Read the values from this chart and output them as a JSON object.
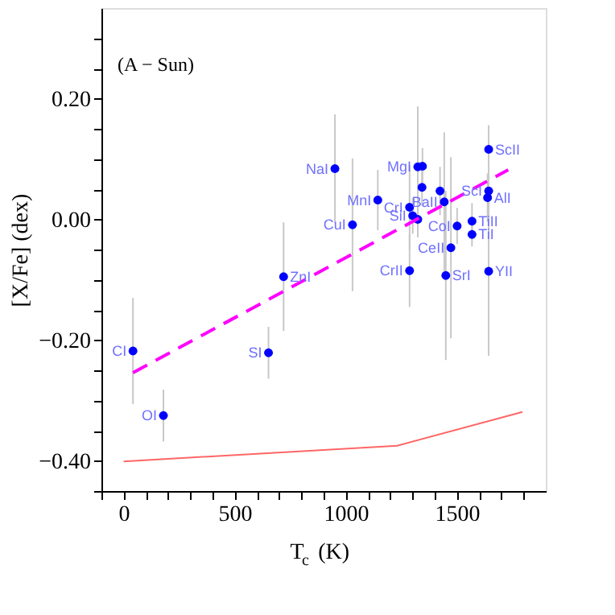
{
  "chart_data": {
    "type": "scatter",
    "xlabel": "T$_{c}$ (K)",
    "ylabel": "[X/Fe] (dex)",
    "xlim": [
      -100,
      1900
    ],
    "ylim": [
      -0.45,
      0.35
    ],
    "xticks": [
      {
        "value": -100,
        "label": null
      },
      0,
      {
        "value": 100,
        "label": null
      },
      {
        "value": 200,
        "label": null
      },
      {
        "value": 300,
        "label": null
      },
      {
        "value": 400,
        "label": null
      },
      500,
      {
        "value": 600,
        "label": null
      },
      {
        "value": 700,
        "label": null
      },
      {
        "value": 800,
        "label": null
      },
      {
        "value": 900,
        "label": null
      },
      1000,
      {
        "value": 1100,
        "label": null
      },
      {
        "value": 1200,
        "label": null
      },
      {
        "value": 1300,
        "label": null
      },
      {
        "value": 1400,
        "label": null
      },
      1500,
      {
        "value": 1600,
        "label": null
      },
      {
        "value": 1700,
        "label": null
      },
      {
        "value": 1800,
        "label": null
      }
    ],
    "yticks": [
      {
        "value": -0.45,
        "label": null
      },
      {
        "value": -0.4,
        "label": "−0.40"
      },
      {
        "value": -0.35,
        "label": null
      },
      {
        "value": -0.3,
        "label": null
      },
      {
        "value": -0.25,
        "label": null
      },
      {
        "value": -0.2,
        "label": "−0.20"
      },
      {
        "value": -0.15,
        "label": null
      },
      {
        "value": -0.1,
        "label": null
      },
      {
        "value": -0.05,
        "label": null
      },
      {
        "value": 0,
        "label": "0.00"
      },
      {
        "value": 0.05,
        "label": null
      },
      {
        "value": 0.1,
        "label": null
      },
      {
        "value": 0.15,
        "label": null
      },
      {
        "value": 0.2,
        "label": "0.20"
      },
      {
        "value": 0.25,
        "label": null
      },
      {
        "value": 0.3,
        "label": null
      }
    ],
    "grid": false,
    "marker": "circle",
    "series": [
      {
        "color": "#0000ff",
        "x": [
          42,
          179,
          652,
          720,
          951,
          1030,
          1144,
          1287,
          1301,
          1324,
          1324,
          1345,
          1343,
          1424,
          1443,
          1287,
          1450,
          1473,
          1501,
          1568,
          1568,
          1638,
          1643,
          1643,
          1643
        ],
        "values": [
          -0.218,
          -0.325,
          -0.221,
          -0.095,
          0.084,
          -0.009,
          0.032,
          0.02,
          0.006,
          0.0,
          0.087,
          0.088,
          0.053,
          0.047,
          0.029,
          -0.085,
          -0.093,
          -0.047,
          -0.011,
          -0.003,
          -0.025,
          0.036,
          0.047,
          0.116,
          -0.086
        ],
        "errors": [
          0.088,
          0.043,
          0.043,
          0.09,
          0.09,
          0.11,
          0.05,
          0.07,
          0.03,
          0.03,
          0.1,
          0.03,
          0.03,
          0.04,
          0.115,
          0.06,
          0.14,
          0.15,
          0.03,
          0.03,
          0.02,
          0.04,
          0.03,
          0.04,
          0.14
        ]
      },
      {
        "type": "line",
        "color": "#ff00ff",
        "line_style": "dashed",
        "marker": "none",
        "x": [
          42,
          1731
        ],
        "values": [
          -0.254,
          0.082
        ]
      },
      {
        "type": "line",
        "color": "#ff6666",
        "line_style": "solid",
        "marker": "none",
        "x": [
          0,
          1231,
          1795
        ],
        "values": [
          -0.401,
          -0.375,
          -0.319
        ]
      }
    ],
    "annotations": [
      "(A − Sun)",
      {
        "text": "CI",
        "x": 42,
        "y": -0.218
      },
      {
        "text": "OI",
        "x": 179,
        "y": -0.325
      },
      {
        "text": "SI",
        "x": 652,
        "y": -0.221
      },
      {
        "text": "ZnI",
        "x": 720,
        "y": -0.095
      },
      {
        "text": "NaI",
        "x": 951,
        "y": 0.084
      },
      {
        "text": "CuI",
        "x": 1030,
        "y": -0.009
      },
      {
        "text": "MnI",
        "x": 1144,
        "y": 0.032
      },
      {
        "text": "CrI",
        "x": 1287,
        "y": 0.02
      },
      {
        "text": "SiI",
        "x": 1301,
        "y": 0.006
      },
      {
        "text": "MgI",
        "x": 1324,
        "y": 0.087
      },
      {
        "text": "BaII",
        "x": 1443,
        "y": 0.029
      },
      {
        "text": "CrII",
        "x": 1287,
        "y": -0.085
      },
      {
        "text": "SrI",
        "x": 1450,
        "y": -0.093
      },
      {
        "text": "CeII",
        "x": 1473,
        "y": -0.047
      },
      {
        "text": "CoI",
        "x": 1501,
        "y": -0.011
      },
      {
        "text": "TiII",
        "x": 1568,
        "y": -0.003
      },
      {
        "text": "TiI",
        "x": 1568,
        "y": -0.025
      },
      {
        "text": "AlI",
        "x": 1638,
        "y": 0.036
      },
      {
        "text": "ScI",
        "x": 1643,
        "y": 0.047
      },
      {
        "text": "ScII",
        "x": 1643,
        "y": 0.116
      },
      {
        "text": "YII",
        "x": 1643,
        "y": -0.086
      }
    ]
  }
}
